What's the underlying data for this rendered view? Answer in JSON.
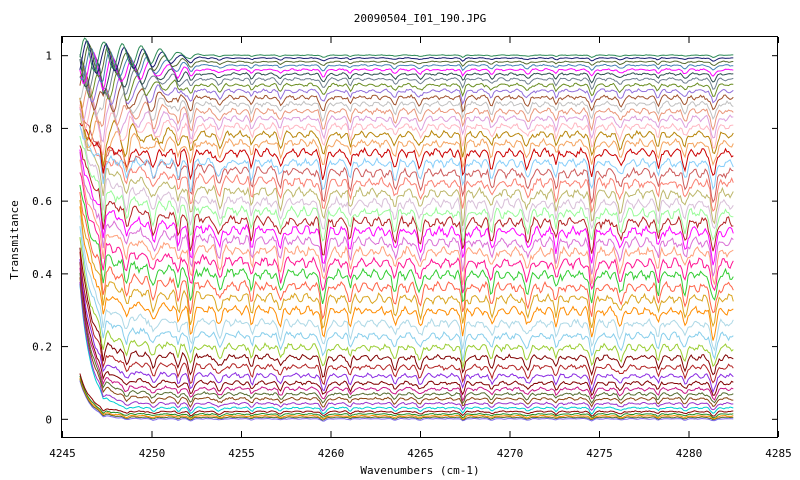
{
  "chart_data": {
    "type": "line",
    "title": "20090504_I01_190.JPG",
    "xlabel": "Wavenumbers (cm-1)",
    "ylabel": "Transmitance",
    "xlim": [
      4245,
      4285
    ],
    "ylim": [
      -0.05,
      1.05
    ],
    "x_ticks": [
      4245,
      4250,
      4255,
      4260,
      4265,
      4270,
      4275,
      4280,
      4285
    ],
    "y_ticks": [
      0,
      0.2,
      0.4,
      0.6,
      0.8,
      1
    ],
    "x_tick_labels": [
      "4245",
      "4250",
      "4255",
      "4260",
      "4265",
      "4270",
      "4275",
      "4280",
      "4285"
    ],
    "y_tick_labels": [
      "0",
      "0.2",
      "0.4",
      "0.6",
      "0.8",
      "1"
    ],
    "grid": false,
    "legend": "none",
    "x_range": [
      4246,
      4282.5
    ],
    "absorption_lines": [
      4247.3,
      4248.6,
      4250.1,
      4251.5,
      4252.2,
      4253.8,
      4255.6,
      4257.2,
      4259.6,
      4261.1,
      4263.6,
      4265.0,
      4267.4,
      4269.0,
      4271.0,
      4272.6,
      4274.6,
      4276.2,
      4278.3,
      4279.8,
      4281.4
    ],
    "palette": [
      "#ff0000",
      "#00b000",
      "#0000ff",
      "#ff00ff",
      "#00c8c8",
      "#a0a000",
      "#7a1f1f",
      "#ff8c00",
      "#9090ff",
      "#90ee20",
      "#c04040",
      "#00ff00",
      "#e0a000",
      "#606060",
      "#ff80a0",
      "#8b4513",
      "#40e0d0",
      "#9932cc",
      "#228b22",
      "#b8860b"
    ],
    "series": [
      {
        "y_end": 0.0,
        "color": "#7b68ee"
      },
      {
        "y_end": 0.004,
        "color": "#556b2f"
      },
      {
        "y_end": 0.008,
        "color": "#ff8c00"
      },
      {
        "y_end": 0.013,
        "color": "#228b22"
      },
      {
        "y_end": 0.02,
        "color": "#8b0000"
      },
      {
        "y_end": 0.03,
        "color": "#00ced1"
      },
      {
        "y_end": 0.042,
        "color": "#9932cc"
      },
      {
        "y_end": 0.055,
        "color": "#8b4513"
      },
      {
        "y_end": 0.068,
        "color": "#556b2f"
      },
      {
        "y_end": 0.082,
        "color": "#c71585"
      },
      {
        "y_end": 0.098,
        "color": "#800000"
      },
      {
        "y_end": 0.118,
        "color": "#8a2be2"
      },
      {
        "y_end": 0.142,
        "color": "#b22222"
      },
      {
        "y_end": 0.168,
        "color": "#800000"
      },
      {
        "y_end": 0.196,
        "color": "#9acd32"
      },
      {
        "y_end": 0.228,
        "color": "#87ceeb"
      },
      {
        "y_end": 0.262,
        "color": "#add8e6"
      },
      {
        "y_end": 0.296,
        "color": "#ff8c00"
      },
      {
        "y_end": 0.33,
        "color": "#daa520"
      },
      {
        "y_end": 0.362,
        "color": "#ff6347"
      },
      {
        "y_end": 0.396,
        "color": "#32cd32"
      },
      {
        "y_end": 0.428,
        "color": "#ff1493"
      },
      {
        "y_end": 0.458,
        "color": "#ffa07a"
      },
      {
        "y_end": 0.486,
        "color": "#da70d6"
      },
      {
        "y_end": 0.514,
        "color": "#ff00ff"
      },
      {
        "y_end": 0.54,
        "color": "#b22222"
      },
      {
        "y_end": 0.566,
        "color": "#98fb98"
      },
      {
        "y_end": 0.592,
        "color": "#d8bfd8"
      },
      {
        "y_end": 0.62,
        "color": "#bdb76b"
      },
      {
        "y_end": 0.648,
        "color": "#fa8072"
      },
      {
        "y_end": 0.676,
        "color": "#cd5c5c"
      },
      {
        "y_end": 0.704,
        "color": "#87cefa"
      },
      {
        "y_end": 0.732,
        "color": "#cc0000"
      },
      {
        "y_end": 0.758,
        "color": "#f4a460"
      },
      {
        "y_end": 0.782,
        "color": "#b8860b"
      },
      {
        "y_end": 0.804,
        "color": "#ffb6c1"
      },
      {
        "y_end": 0.826,
        "color": "#dda0dd"
      },
      {
        "y_end": 0.846,
        "color": "#e9967a"
      },
      {
        "y_end": 0.866,
        "color": "#c0c0c0"
      },
      {
        "y_end": 0.884,
        "color": "#a0522d"
      },
      {
        "y_end": 0.902,
        "color": "#9370db"
      },
      {
        "y_end": 0.918,
        "color": "#6b8e23"
      },
      {
        "y_end": 0.934,
        "color": "#708090"
      },
      {
        "y_end": 0.948,
        "color": "#2f4f4f"
      },
      {
        "y_end": 0.96,
        "color": "#ff00ff"
      },
      {
        "y_end": 0.972,
        "color": "#4682b4"
      },
      {
        "y_end": 0.982,
        "color": "#556b2f"
      },
      {
        "y_end": 0.992,
        "color": "#191970"
      },
      {
        "y_end": 1.0,
        "color": "#2e8b57"
      }
    ]
  }
}
